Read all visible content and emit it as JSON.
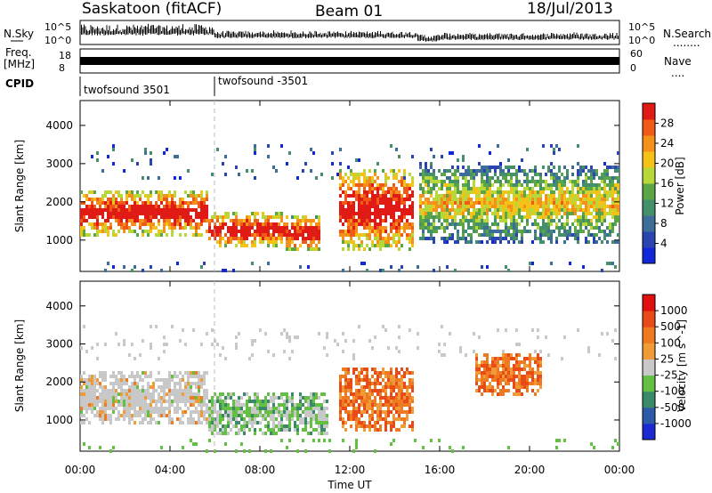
{
  "header": {
    "station": "Saskatoon (fitACF)",
    "beam": "Beam 01",
    "date": "18/Jul/2013"
  },
  "strips": {
    "nsky_label": "N.Sky",
    "nsearch_label": "N.Search",
    "nsearch_marker": "........",
    "log_top_tick": "10^5",
    "log_bottom_tick": "10^0",
    "freq_label_1": "Freq.",
    "freq_label_2": "[MHz]",
    "freq_ticks": [
      "18",
      "8"
    ],
    "nave_label": "Nave",
    "nave_marker": "....",
    "nave_ticks": [
      "60",
      "0"
    ],
    "cpid_label": "CPID",
    "cpid_segments": [
      {
        "label": "twofsound 3501",
        "start_hour": 0
      },
      {
        "label": "twofsound -3501",
        "start_hour": 6
      }
    ]
  },
  "chart_data": [
    {
      "type": "heatmap",
      "panel": "power",
      "ylabel": "Slant Range [km]",
      "ylim": [
        180,
        4650
      ],
      "yticks": [
        1000,
        2000,
        3000,
        4000
      ],
      "xlim_hours": [
        0,
        24
      ],
      "xticks": [
        "00:00",
        "04:00",
        "08:00",
        "12:00",
        "16:00",
        "20:00",
        "00:00"
      ],
      "colorbar": {
        "label": "Power [dB]",
        "ticks": [
          "4",
          "8",
          "12",
          "16",
          "20",
          "24",
          "28"
        ],
        "colors": [
          "#1228d8",
          "#2a44b0",
          "#3d6e9a",
          "#43906a",
          "#5aa646",
          "#b8d83a",
          "#f5c318",
          "#f5901a",
          "#f05a16",
          "#e01a14"
        ]
      },
      "regions": [
        {
          "t": [
            0.0,
            5.6
          ],
          "r": [
            1100,
            2300
          ],
          "level": "high",
          "note_hours": "00-05.6"
        },
        {
          "t": [
            5.6,
            9.0
          ],
          "r": [
            800,
            1700
          ],
          "level": "high"
        },
        {
          "t": [
            9.0,
            10.6
          ],
          "r": [
            700,
            1600
          ],
          "level": "high"
        },
        {
          "t": [
            11.5,
            14.8
          ],
          "r": [
            700,
            2900
          ],
          "level": "high"
        },
        {
          "t": [
            15.0,
            24.0
          ],
          "r": [
            900,
            3000
          ],
          "level": "low"
        }
      ]
    },
    {
      "type": "heatmap",
      "panel": "velocity",
      "ylabel": "Slant Range [km]",
      "ylim": [
        180,
        4650
      ],
      "yticks": [
        1000,
        2000,
        3000,
        4000
      ],
      "xlim_hours": [
        0,
        24
      ],
      "xticks": [
        "00:00",
        "04:00",
        "08:00",
        "12:00",
        "16:00",
        "20:00",
        "00:00"
      ],
      "xlabel": "Time UT",
      "colorbar": {
        "label": "Velocity [m s^-1]",
        "ticks": [
          "1000",
          "500",
          "100",
          "25",
          "-25",
          "-100",
          "-500",
          "-1000"
        ],
        "colors": [
          "#1a2ad0",
          "#2c5aa8",
          "#3a8a6a",
          "#63c043",
          "#c8c8c8",
          "#f09a38",
          "#f07a20",
          "#e84a18",
          "#e01010"
        ]
      },
      "regions": [
        {
          "t": [
            0.0,
            5.6
          ],
          "r": [
            900,
            2300
          ],
          "level": "mixed"
        },
        {
          "t": [
            5.6,
            11.0
          ],
          "r": [
            600,
            1700
          ],
          "level": "toward"
        },
        {
          "t": [
            11.5,
            14.8
          ],
          "r": [
            700,
            2400
          ],
          "level": "away"
        },
        {
          "t": [
            17.5,
            20.5
          ],
          "r": [
            1600,
            2800
          ],
          "level": "away"
        }
      ]
    }
  ]
}
